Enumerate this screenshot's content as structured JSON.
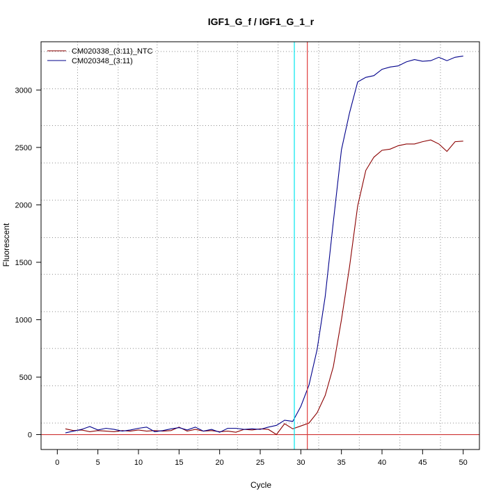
{
  "chart_data": {
    "type": "line",
    "title": "IGF1_G_f / IGF1_G_1_r",
    "xlabel": "Cycle",
    "ylabel": "Fluorescent",
    "xlim": [
      -2,
      52
    ],
    "ylim": [
      -130,
      3420
    ],
    "x_ticks": [
      0,
      5,
      10,
      15,
      20,
      25,
      30,
      35,
      40,
      45,
      50
    ],
    "y_ticks": [
      0,
      500,
      1000,
      1500,
      2000,
      2500,
      3000
    ],
    "x_tick_labels": [
      "0",
      "5",
      "10",
      "15",
      "20",
      "25",
      "30",
      "35",
      "40",
      "45",
      "50"
    ],
    "y_tick_labels": [
      "0",
      "500",
      "1000",
      "1500",
      "2000",
      "2500",
      "3000"
    ],
    "grid_x": [
      2.5,
      7.5,
      12.3,
      17.3,
      22.2,
      27.2,
      32.2,
      37.2,
      42.2,
      47.2
    ],
    "grid_y": [
      100,
      425,
      750,
      1070,
      1395,
      1715,
      2040,
      2365,
      2690,
      3010,
      3335
    ],
    "legend_position": "top-left",
    "threshold": 0,
    "vlines": [
      {
        "x": 29.2,
        "color": "#00e5ee"
      },
      {
        "x": 30.8,
        "color": "#e03c3c"
      }
    ],
    "series": [
      {
        "name": "CM020338_(3:11)_NTC",
        "color": "#8b0000",
        "x": [
          1,
          2,
          3,
          4,
          5,
          6,
          7,
          8,
          9,
          10,
          11,
          12,
          13,
          14,
          15,
          16,
          17,
          18,
          19,
          20,
          21,
          22,
          23,
          24,
          25,
          26,
          27,
          28,
          29,
          30,
          31,
          32,
          33,
          34,
          35,
          36,
          37,
          38,
          39,
          40,
          41,
          42,
          43,
          44,
          45,
          46,
          47,
          48,
          49,
          50
        ],
        "values": [
          50,
          35,
          40,
          25,
          35,
          30,
          25,
          35,
          30,
          40,
          30,
          35,
          30,
          35,
          65,
          30,
          45,
          30,
          35,
          25,
          30,
          20,
          45,
          40,
          50,
          45,
          0,
          95,
          50,
          75,
          100,
          190,
          340,
          590,
          1000,
          1460,
          1990,
          2300,
          2415,
          2475,
          2485,
          2515,
          2530,
          2530,
          2550,
          2565,
          2530,
          2465,
          2550,
          2555
        ]
      },
      {
        "name": "CM020348_(3:11)",
        "color": "#00008b",
        "x": [
          1,
          2,
          3,
          4,
          5,
          6,
          7,
          8,
          9,
          10,
          11,
          12,
          13,
          14,
          15,
          16,
          17,
          18,
          19,
          20,
          21,
          22,
          23,
          24,
          25,
          26,
          27,
          28,
          29,
          30,
          31,
          32,
          33,
          34,
          35,
          36,
          37,
          38,
          39,
          40,
          41,
          42,
          43,
          44,
          45,
          46,
          47,
          48,
          49,
          50
        ],
        "values": [
          15,
          30,
          45,
          70,
          40,
          55,
          45,
          30,
          40,
          55,
          65,
          25,
          35,
          50,
          60,
          40,
          65,
          30,
          45,
          20,
          55,
          55,
          45,
          50,
          45,
          65,
          80,
          125,
          115,
          245,
          430,
          740,
          1200,
          1850,
          2480,
          2800,
          3070,
          3110,
          3125,
          3180,
          3200,
          3210,
          3245,
          3265,
          3250,
          3255,
          3285,
          3255,
          3285,
          3295
        ]
      }
    ]
  }
}
